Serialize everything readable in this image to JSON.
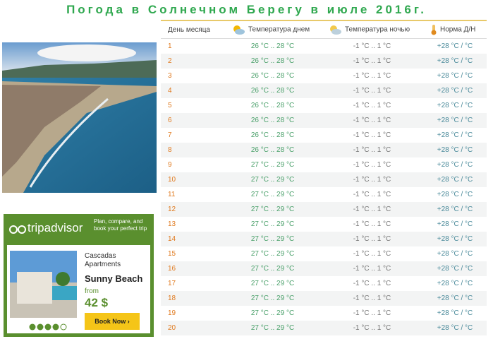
{
  "title": "Погода в Солнечном Берегу в июле 2016г.",
  "table": {
    "header": [
      "День месяца",
      "Температура днем",
      "Температура ночью",
      "Норма Д/Н"
    ],
    "rows": [
      [
        "1",
        "26 °C .. 28 °C",
        "-1 °C .. 1 °C",
        "+28 °C / °C"
      ],
      [
        "2",
        "26 °C .. 28 °C",
        "-1 °C .. 1 °C",
        "+28 °C / °C"
      ],
      [
        "3",
        "26 °C .. 28 °C",
        "-1 °C .. 1 °C",
        "+28 °C / °C"
      ],
      [
        "4",
        "26 °C .. 28 °C",
        "-1 °C .. 1 °C",
        "+28 °C / °C"
      ],
      [
        "5",
        "26 °C .. 28 °C",
        "-1 °C .. 1 °C",
        "+28 °C / °C"
      ],
      [
        "6",
        "26 °C .. 28 °C",
        "-1 °C .. 1 °C",
        "+28 °C / °C"
      ],
      [
        "7",
        "26 °C .. 28 °C",
        "-1 °C .. 1 °C",
        "+28 °C / °C"
      ],
      [
        "8",
        "26 °C .. 28 °C",
        "-1 °C .. 1 °C",
        "+28 °C / °C"
      ],
      [
        "9",
        "27 °C .. 29 °C",
        "-1 °C .. 1 °C",
        "+28 °C / °C"
      ],
      [
        "10",
        "27 °C .. 29 °C",
        "-1 °C .. 1 °C",
        "+28 °C / °C"
      ],
      [
        "11",
        "27 °C .. 29 °C",
        "-1 °C .. 1 °C",
        "+28 °C / °C"
      ],
      [
        "12",
        "27 °C .. 29 °C",
        "-1 °C .. 1 °C",
        "+28 °C / °C"
      ],
      [
        "13",
        "27 °C .. 29 °C",
        "-1 °C .. 1 °C",
        "+28 °C / °C"
      ],
      [
        "14",
        "27 °C .. 29 °C",
        "-1 °C .. 1 °C",
        "+28 °C / °C"
      ],
      [
        "15",
        "27 °C .. 29 °C",
        "-1 °C .. 1 °C",
        "+28 °C / °C"
      ],
      [
        "16",
        "27 °C .. 29 °C",
        "-1 °C .. 1 °C",
        "+28 °C / °C"
      ],
      [
        "17",
        "27 °C .. 29 °C",
        "-1 °C .. 1 °C",
        "+28 °C / °C"
      ],
      [
        "18",
        "27 °C .. 29 °C",
        "-1 °C .. 1 °C",
        "+28 °C / °C"
      ],
      [
        "19",
        "27 °C .. 29 °C",
        "-1 °C .. 1 °C",
        "+28 °C / °C"
      ],
      [
        "20",
        "27 °C .. 29 °C",
        "-1 °C .. 1 °C",
        "+28 °C / °C"
      ]
    ]
  },
  "ad": {
    "brand": "tripadvisor",
    "slogan": "Plan, compare, and book your perfect trip",
    "hotel": "Cascadas Apartments",
    "city": "Sunny Beach",
    "from": "from",
    "price": "42 $",
    "button": "Book Now ›"
  }
}
